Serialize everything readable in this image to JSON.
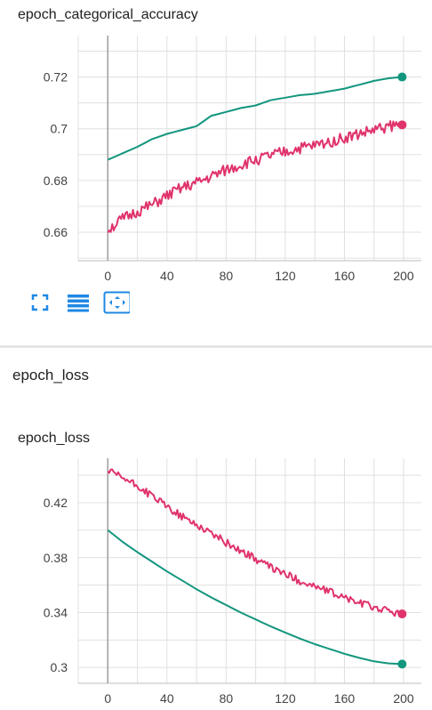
{
  "cards": [
    {
      "title": "epoch_categorical_accuracy"
    },
    {
      "title": "epoch_loss"
    }
  ],
  "section": {
    "title": "epoch_loss"
  },
  "toolbar": {
    "icons": [
      "fullscreen-icon",
      "toggle-lines-icon",
      "fit-domain-icon"
    ],
    "accent_color": "#1e88e5"
  },
  "colors": {
    "teal": "#12967e",
    "pink": "#e0336b",
    "grid": "#e0e0e0",
    "axis": "#9e9e9e"
  },
  "chart_data": [
    {
      "type": "line",
      "title": "epoch_categorical_accuracy",
      "xlim": [
        -20,
        212
      ],
      "ylim": [
        0.649,
        0.736
      ],
      "xticks": [
        "0",
        "40",
        "80",
        "120",
        "160",
        "200"
      ],
      "xtick_values": [
        0,
        40,
        80,
        120,
        160,
        200
      ],
      "yticks": [
        "0.66",
        "0.68",
        "0.7",
        "0.72"
      ],
      "ytick_values": [
        0.66,
        0.68,
        0.7,
        0.72
      ],
      "series": [
        {
          "color": "#12967e",
          "x": [
            0,
            10,
            20,
            30,
            40,
            50,
            60,
            70,
            80,
            90,
            100,
            110,
            120,
            130,
            140,
            150,
            160,
            170,
            180,
            190,
            199
          ],
          "y": [
            0.688,
            0.6905,
            0.693,
            0.696,
            0.698,
            0.6995,
            0.701,
            0.705,
            0.7065,
            0.708,
            0.709,
            0.711,
            0.712,
            0.713,
            0.7135,
            0.7145,
            0.7155,
            0.717,
            0.7185,
            0.7195,
            0.72
          ]
        },
        {
          "color": "#e0336b",
          "x": [
            0,
            10,
            20,
            30,
            40,
            50,
            60,
            70,
            80,
            90,
            100,
            110,
            120,
            130,
            140,
            150,
            160,
            170,
            180,
            190,
            199
          ],
          "y": [
            0.661,
            0.665,
            0.668,
            0.6705,
            0.674,
            0.677,
            0.679,
            0.6815,
            0.684,
            0.686,
            0.688,
            0.6895,
            0.691,
            0.6925,
            0.6935,
            0.695,
            0.6965,
            0.698,
            0.6995,
            0.701,
            0.7015
          ]
        }
      ]
    },
    {
      "type": "line",
      "title": "epoch_loss",
      "xlim": [
        -20,
        212
      ],
      "ylim": [
        0.2885,
        0.4524
      ],
      "xticks": [
        "0",
        "40",
        "80",
        "120",
        "160",
        "200"
      ],
      "xtick_values": [
        0,
        40,
        80,
        120,
        160,
        200
      ],
      "yticks": [
        "0.3",
        "0.34",
        "0.38",
        "0.42"
      ],
      "ytick_values": [
        0.3,
        0.34,
        0.38,
        0.42
      ],
      "series": [
        {
          "color": "#12967e",
          "x": [
            0,
            10,
            20,
            30,
            40,
            50,
            60,
            70,
            80,
            90,
            100,
            110,
            120,
            130,
            140,
            150,
            160,
            170,
            180,
            190,
            199
          ],
          "y": [
            0.4,
            0.3915,
            0.384,
            0.377,
            0.37,
            0.3635,
            0.357,
            0.351,
            0.3455,
            0.34,
            0.335,
            0.33,
            0.3255,
            0.321,
            0.317,
            0.3135,
            0.31,
            0.307,
            0.3045,
            0.303,
            0.3025
          ]
        },
        {
          "color": "#e0336b",
          "x": [
            0,
            10,
            20,
            30,
            40,
            50,
            60,
            70,
            80,
            90,
            100,
            110,
            120,
            130,
            140,
            150,
            160,
            170,
            180,
            190,
            199
          ],
          "y": [
            0.443,
            0.438,
            0.432,
            0.425,
            0.417,
            0.41,
            0.404,
            0.398,
            0.391,
            0.385,
            0.379,
            0.373,
            0.368,
            0.363,
            0.359,
            0.355,
            0.351,
            0.347,
            0.344,
            0.341,
            0.339
          ]
        }
      ]
    }
  ]
}
